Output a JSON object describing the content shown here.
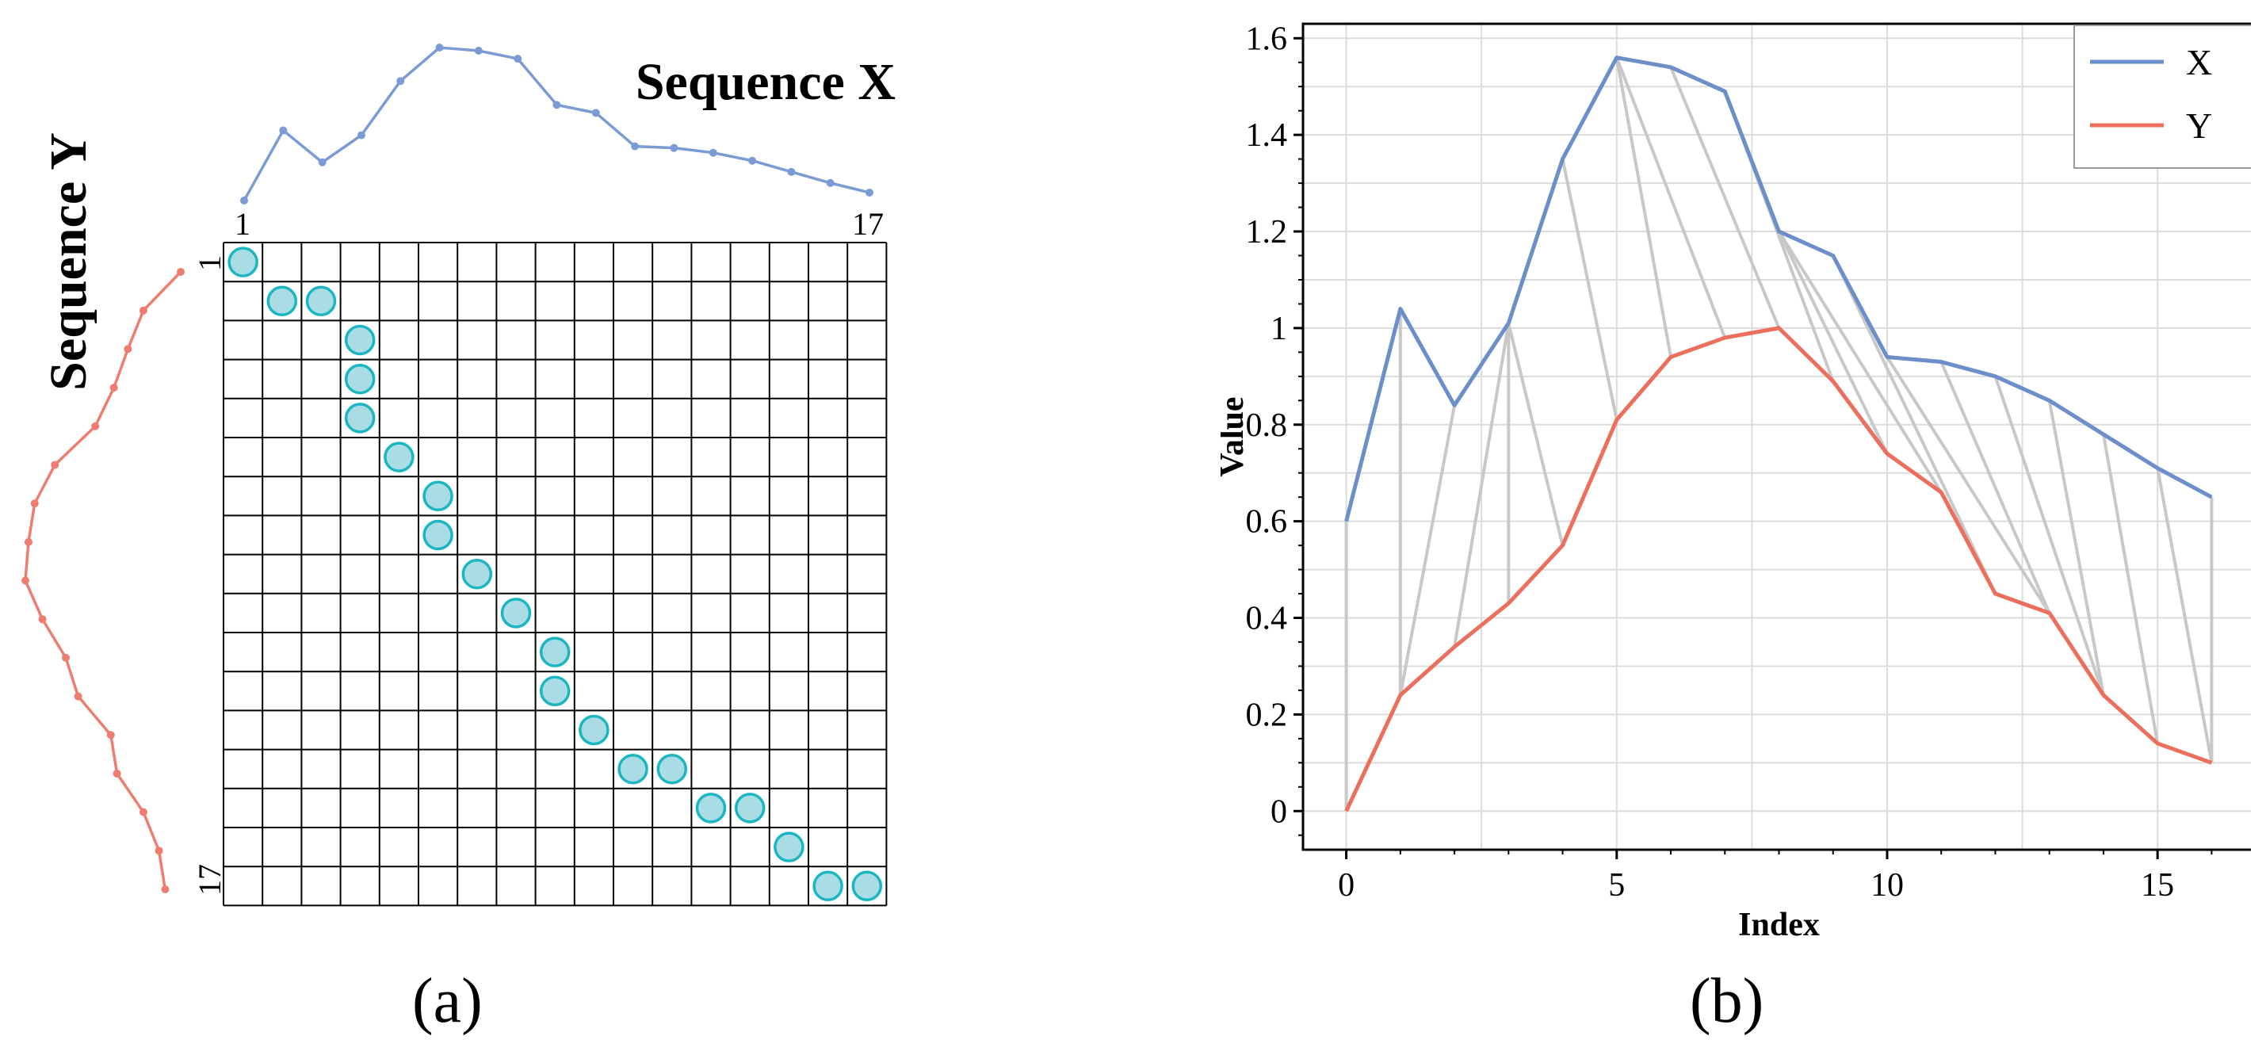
{
  "panel_a": {
    "label": "(a)",
    "title_x": "Sequence X",
    "title_y": "Sequence Y",
    "x_start_label": "1",
    "x_end_label": "17",
    "y_start_label": "1",
    "y_end_label": "17",
    "colors": {
      "x_line": "#7b9bd4",
      "y_line": "#ef7d6f",
      "path_fill": "#a9dce4",
      "path_stroke": "#1bb6c1"
    }
  },
  "panel_b": {
    "label": "(b)",
    "colors": {
      "x_line": "#6c8ec9",
      "y_line": "#ec6f5e",
      "match_line": "#c8c8c8",
      "grid": "#dcdcdc"
    }
  },
  "chart_data": [
    {
      "type": "line",
      "panel": "a",
      "series": [
        {
          "name": "Sequence X",
          "values": [
            0.6,
            1.04,
            0.84,
            1.01,
            1.35,
            1.56,
            1.54,
            1.49,
            1.2,
            1.15,
            0.94,
            0.93,
            0.9,
            0.85,
            0.78,
            0.71,
            0.65
          ]
        },
        {
          "name": "Sequence Y",
          "values": [
            0.0,
            0.24,
            0.34,
            0.43,
            0.55,
            0.81,
            0.94,
            0.98,
            1.0,
            0.89,
            0.74,
            0.66,
            0.45,
            0.41,
            0.24,
            0.14,
            0.1
          ]
        }
      ],
      "warping_path": [
        [
          1,
          1
        ],
        [
          2,
          2
        ],
        [
          3,
          2
        ],
        [
          4,
          3
        ],
        [
          4,
          4
        ],
        [
          4,
          5
        ],
        [
          5,
          6
        ],
        [
          6,
          7
        ],
        [
          6,
          8
        ],
        [
          7,
          9
        ],
        [
          8,
          10
        ],
        [
          9,
          11
        ],
        [
          9,
          12
        ],
        [
          10,
          13
        ],
        [
          11,
          14
        ],
        [
          12,
          14
        ],
        [
          13,
          15
        ],
        [
          14,
          15
        ],
        [
          15,
          16
        ],
        [
          16,
          17
        ],
        [
          17,
          17
        ]
      ],
      "grid_size": 17
    },
    {
      "type": "line",
      "panel": "b",
      "x": [
        0,
        1,
        2,
        3,
        4,
        5,
        6,
        7,
        8,
        9,
        10,
        11,
        12,
        13,
        14,
        15,
        16
      ],
      "series": [
        {
          "name": "X",
          "values": [
            0.6,
            1.04,
            0.84,
            1.01,
            1.35,
            1.56,
            1.54,
            1.49,
            1.2,
            1.15,
            0.94,
            0.93,
            0.9,
            0.85,
            0.78,
            0.71,
            0.65
          ]
        },
        {
          "name": "Y",
          "values": [
            0.0,
            0.24,
            0.34,
            0.43,
            0.55,
            0.81,
            0.94,
            0.98,
            1.0,
            0.89,
            0.74,
            0.66,
            0.45,
            0.41,
            0.24,
            0.14,
            0.1
          ]
        }
      ],
      "matches": [
        [
          0,
          0
        ],
        [
          1,
          1
        ],
        [
          2,
          1
        ],
        [
          3,
          2
        ],
        [
          3,
          3
        ],
        [
          3,
          4
        ],
        [
          4,
          5
        ],
        [
          5,
          6
        ],
        [
          5,
          7
        ],
        [
          6,
          8
        ],
        [
          7,
          9
        ],
        [
          8,
          10
        ],
        [
          8,
          11
        ],
        [
          9,
          12
        ],
        [
          10,
          13
        ],
        [
          11,
          13
        ],
        [
          12,
          14
        ],
        [
          13,
          14
        ],
        [
          14,
          15
        ],
        [
          15,
          16
        ],
        [
          16,
          16
        ]
      ],
      "xlabel": "Index",
      "ylabel": "Value",
      "xlim": [
        -0.8,
        16.8
      ],
      "ylim": [
        -0.08,
        1.63
      ],
      "xticks": [
        0,
        5,
        10,
        15
      ],
      "yticks": [
        0,
        0.2,
        0.4,
        0.6,
        0.8,
        1,
        1.2,
        1.4,
        1.6
      ],
      "ytick_labels": [
        "0",
        "0.2",
        "0.4",
        "0.6",
        "0.8",
        "1",
        "1.2",
        "1.4",
        "1.6"
      ],
      "grid": true,
      "legend": {
        "position": "top-right",
        "entries": [
          "X",
          "Y"
        ]
      }
    }
  ]
}
